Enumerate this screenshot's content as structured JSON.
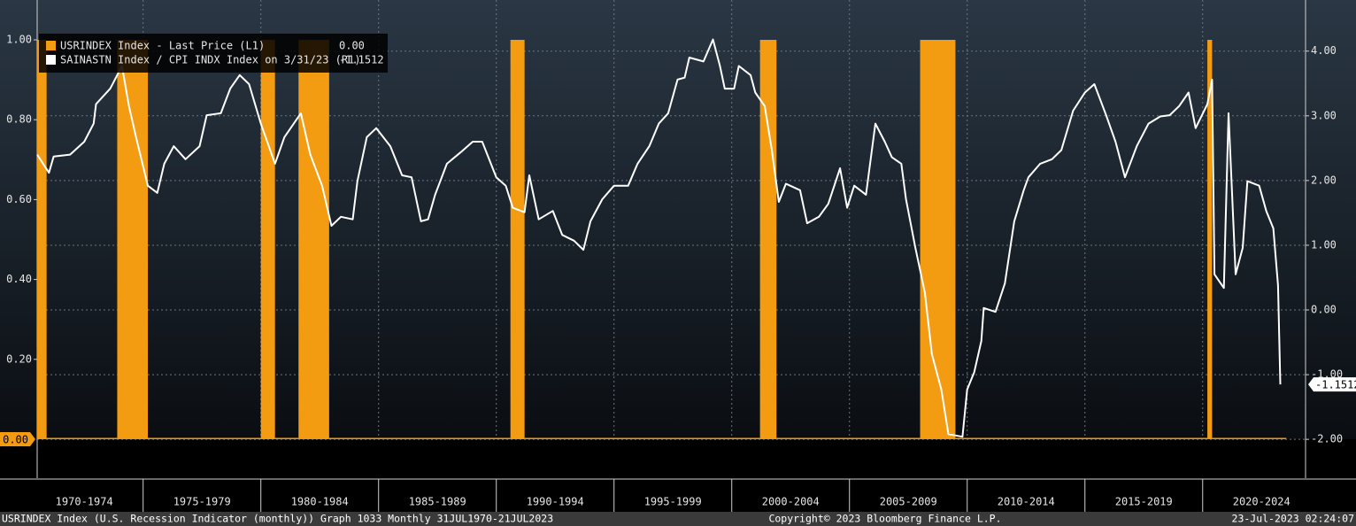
{
  "chart_data": {
    "type": "combo",
    "xlim": [
      1970.5,
      2024.37
    ],
    "xticks": [
      1975,
      1980,
      1985,
      1990,
      1995,
      2000,
      2005,
      2010,
      2015,
      2020
    ],
    "period_labels": [
      "1970-1974",
      "1975-1979",
      "1980-1984",
      "1985-1989",
      "1990-1994",
      "1995-1999",
      "2000-2004",
      "2005-2009",
      "2010-2014",
      "2015-2019",
      "2020-2024"
    ],
    "ylim": [
      -0.0976,
      1.0998
    ],
    "yticks": [
      {
        "value": 0.2,
        "label": "0.20"
      },
      {
        "value": 0.4,
        "label": "0.40"
      },
      {
        "value": 0.6,
        "label": "0.60"
      },
      {
        "value": 0.8,
        "label": "0.80"
      },
      {
        "value": 1.0,
        "label": "1.00"
      }
    ],
    "y2lim": [
      -2.6,
      4.79
    ],
    "y2ticks": [
      {
        "value": -2,
        "label": "-2.00"
      },
      {
        "value": -1,
        "label": "-1.00"
      },
      {
        "value": 0,
        "label": "0.00"
      },
      {
        "value": 1,
        "label": "1.00"
      },
      {
        "value": 2,
        "label": "2.00"
      },
      {
        "value": 3,
        "label": "3.00"
      },
      {
        "value": 4,
        "label": "4.00"
      }
    ],
    "grid": true,
    "legend": "top-left",
    "series": [
      {
        "name": "USRINDEX Index - Last Price (L1)",
        "type": "bar",
        "color": "#f39c12",
        "last_label": "0.00",
        "x": [
          1970.5,
          1970.9,
          1973.9,
          1975.2,
          1980.0,
          1980.6,
          1981.6,
          1982.9,
          1990.6,
          1991.2,
          2001.2,
          2001.9,
          2008.0,
          2009.5,
          2020.2,
          2020.4,
          2023.55
        ],
        "values": [
          1,
          0,
          1,
          0,
          1,
          0,
          1,
          0,
          1,
          0,
          1,
          0,
          1,
          0,
          1,
          0,
          0
        ]
      },
      {
        "name": "SAINASTN Index / CPI INDX Index on 3/31/23 (R1)",
        "type": "line",
        "axis": "y2",
        "color": "#ffffff",
        "last_label": "-1.1512",
        "x": [
          1970.5,
          1971.0,
          1971.2,
          1971.9,
          1972.5,
          1972.9,
          1973.0,
          1973.6,
          1974.1,
          1974.4,
          1974.7,
          1975.2,
          1975.6,
          1975.9,
          1976.3,
          1976.8,
          1977.4,
          1977.7,
          1978.3,
          1978.7,
          1979.1,
          1979.5,
          1980.0,
          1980.6,
          1981.0,
          1981.7,
          1982.1,
          1982.6,
          1983.0,
          1983.4,
          1983.9,
          1984.1,
          1984.5,
          1984.9,
          1985.5,
          1986.0,
          1986.4,
          1986.8,
          1987.1,
          1987.4,
          1987.9,
          1988.5,
          1989.0,
          1989.4,
          1990.0,
          1990.4,
          1990.7,
          1991.2,
          1991.4,
          1991.8,
          1992.4,
          1992.8,
          1993.3,
          1993.7,
          1994.0,
          1994.5,
          1995.0,
          1995.6,
          1996.0,
          1996.5,
          1996.9,
          1997.3,
          1997.7,
          1998.0,
          1998.2,
          1998.8,
          1999.2,
          1999.5,
          1999.7,
          2000.1,
          2000.3,
          2000.8,
          2001.0,
          2001.4,
          2001.7,
          2002.0,
          2002.3,
          2002.9,
          2003.2,
          2003.7,
          2004.1,
          2004.6,
          2004.9,
          2005.2,
          2005.7,
          2006.1,
          2006.5,
          2006.8,
          2007.2,
          2007.4,
          2007.8,
          2008.2,
          2008.5,
          2008.9,
          2009.2,
          2009.8,
          2010.0,
          2010.3,
          2010.6,
          2010.7,
          2011.2,
          2011.6,
          2012.0,
          2012.4,
          2012.6,
          2013.1,
          2013.6,
          2014.0,
          2014.5,
          2015.0,
          2015.4,
          2015.9,
          2016.3,
          2016.7,
          2017.2,
          2017.7,
          2018.2,
          2018.6,
          2019.0,
          2019.4,
          2019.7,
          2020.2,
          2020.4,
          2020.5,
          2020.9,
          2021.1,
          2021.4,
          2021.7,
          2021.9,
          2022.4,
          2022.7,
          2023.0,
          2023.2,
          2023.3
        ],
        "values": [
          2.4,
          2.12,
          2.37,
          2.4,
          2.6,
          2.88,
          3.18,
          3.42,
          3.77,
          3.15,
          2.67,
          1.92,
          1.81,
          2.26,
          2.53,
          2.33,
          2.53,
          3.01,
          3.04,
          3.42,
          3.63,
          3.49,
          2.88,
          2.26,
          2.67,
          3.04,
          2.4,
          1.92,
          1.3,
          1.44,
          1.4,
          1.99,
          2.67,
          2.81,
          2.53,
          2.08,
          2.05,
          1.37,
          1.4,
          1.78,
          2.26,
          2.44,
          2.6,
          2.6,
          2.05,
          1.92,
          1.58,
          1.51,
          2.08,
          1.4,
          1.53,
          1.16,
          1.07,
          0.93,
          1.37,
          1.71,
          1.92,
          1.92,
          2.26,
          2.53,
          2.88,
          3.04,
          3.56,
          3.59,
          3.9,
          3.84,
          4.18,
          3.77,
          3.42,
          3.42,
          3.77,
          3.63,
          3.36,
          3.15,
          2.47,
          1.67,
          1.95,
          1.85,
          1.34,
          1.44,
          1.64,
          2.19,
          1.58,
          1.92,
          1.78,
          2.88,
          2.6,
          2.36,
          2.26,
          1.71,
          0.96,
          0.27,
          -0.68,
          -1.23,
          -1.92,
          -1.96,
          -1.23,
          -0.96,
          -0.48,
          0.03,
          -0.03,
          0.41,
          1.37,
          1.85,
          2.05,
          2.26,
          2.33,
          2.47,
          3.08,
          3.36,
          3.49,
          3.01,
          2.6,
          2.05,
          2.53,
          2.88,
          2.99,
          3.01,
          3.15,
          3.36,
          2.81,
          3.18,
          3.56,
          0.55,
          0.34,
          3.04,
          0.55,
          0.96,
          1.99,
          1.92,
          1.53,
          1.26,
          0.38,
          -1.1512
        ]
      }
    ],
    "footer_left": "USRINDEX Index (U.S. Recession Indicator (monthly)) Graph 1033  Monthly 31JUL1970-21JUL2023",
    "footer_center": "Copyright© 2023 Bloomberg Finance L.P.",
    "footer_right": "23-Jul-2023 02:24:07"
  }
}
